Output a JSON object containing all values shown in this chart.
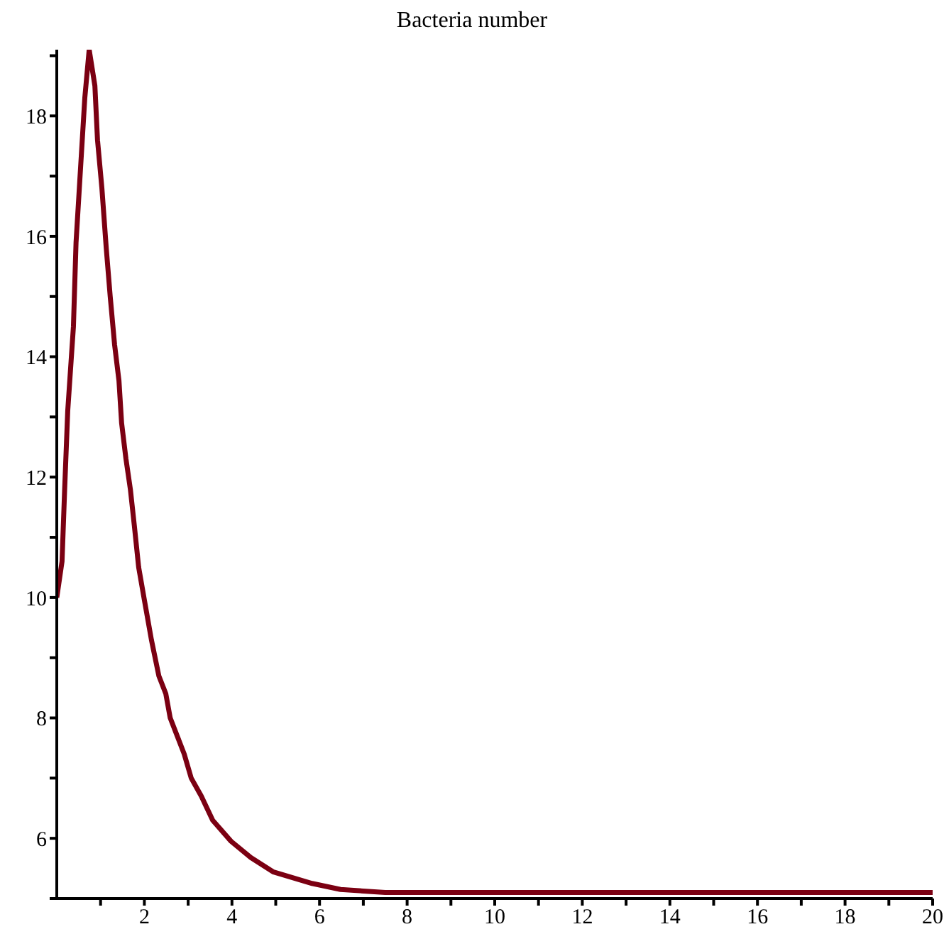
{
  "chart_data": {
    "type": "line",
    "title": "Bacteria number",
    "x": [
      0,
      0.12,
      0.18,
      0.25,
      0.38,
      0.44,
      0.54,
      0.64,
      0.74,
      0.87,
      0.93,
      1.03,
      1.13,
      1.22,
      1.32,
      1.42,
      1.48,
      1.58,
      1.68,
      1.77,
      1.87,
      2.0,
      2.16,
      2.33,
      2.49,
      2.59,
      2.75,
      2.91,
      3.07,
      3.3,
      3.56,
      3.98,
      4.43,
      4.95,
      5.83,
      6.48,
      7.5,
      20
    ],
    "series": [
      {
        "color": "#7b0012",
        "values": [
          10.0,
          10.6,
          11.8,
          13.1,
          14.5,
          15.9,
          17.1,
          18.3,
          19.1,
          18.5,
          17.6,
          16.8,
          15.8,
          15.0,
          14.2,
          13.6,
          12.9,
          12.3,
          11.8,
          11.2,
          10.5,
          9.96,
          9.3,
          8.7,
          8.4,
          8.0,
          7.7,
          7.4,
          7.0,
          6.7,
          6.3,
          5.95,
          5.68,
          5.44,
          5.25,
          5.15,
          5.1,
          5.1
        ]
      }
    ],
    "xlim": [
      0,
      20
    ],
    "ylim": [
      5,
      19.1
    ],
    "xticks": [
      {
        "value": 1,
        "label": null
      },
      2,
      {
        "value": 3,
        "label": null
      },
      4,
      {
        "value": 5,
        "label": null
      },
      6,
      {
        "value": 7,
        "label": null
      },
      8,
      {
        "value": 9,
        "label": null
      },
      10,
      {
        "value": 11,
        "label": null
      },
      12,
      {
        "value": 13,
        "label": null
      },
      14,
      {
        "value": 15,
        "label": null
      },
      16,
      {
        "value": 17,
        "label": null
      },
      18,
      {
        "value": 19,
        "label": null
      },
      20
    ],
    "yticks": [
      {
        "value": 5,
        "label": null
      },
      6,
      {
        "value": 7,
        "label": null
      },
      8,
      {
        "value": 9,
        "label": null
      },
      10,
      {
        "value": 11,
        "label": null
      },
      12,
      {
        "value": 13,
        "label": null
      },
      14,
      {
        "value": 15,
        "label": null
      },
      16,
      {
        "value": 17,
        "label": null
      },
      18,
      {
        "value": 19,
        "label": null
      }
    ],
    "grid": false,
    "legend": false,
    "marker": "none",
    "line_style": "solid"
  }
}
